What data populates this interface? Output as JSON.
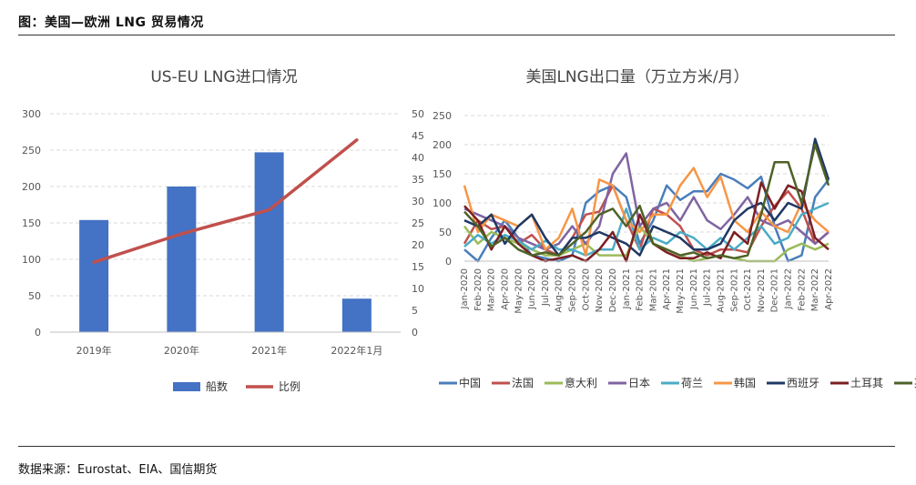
{
  "header": {
    "title": "图：美国—欧洲 LNG 贸易情况"
  },
  "footer": {
    "source": "数据来源：Eurostat、EIA、国信期货"
  },
  "chart_data": [
    {
      "type": "bar",
      "title": "US-EU LNG进口情况",
      "categories": [
        "2019年",
        "2020年",
        "2021年",
        "2022年1月"
      ],
      "ylim": [
        0,
        300
      ],
      "yticks": [
        0,
        50,
        100,
        150,
        200,
        250,
        300
      ],
      "y2lim": [
        0,
        50
      ],
      "y2ticks": [
        0,
        5,
        10,
        15,
        20,
        25,
        30,
        35,
        40,
        45,
        50
      ],
      "series": [
        {
          "name": "船数",
          "kind": "bar",
          "axis": "left",
          "color": "#4472C4",
          "values": [
            154,
            200,
            247,
            46
          ]
        },
        {
          "name": "比例",
          "kind": "line",
          "axis": "right",
          "color": "#C0504D",
          "values": [
            16,
            22.5,
            28,
            44
          ]
        }
      ]
    },
    {
      "type": "line",
      "title": "美国LNG出口量（万立方米/月）",
      "ylim": [
        0,
        250
      ],
      "yticks": [
        0,
        50,
        100,
        150,
        200,
        250
      ],
      "x": [
        "Jan-2020",
        "Feb-2020",
        "Mar-2020",
        "Apr-2020",
        "May-2020",
        "Jun-2020",
        "Jul-2020",
        "Aug-2020",
        "Sep-2020",
        "Oct-2020",
        "Nov-2020",
        "Dec-2020",
        "Jan-2021",
        "Feb-2021",
        "Mar-2021",
        "Apr-2021",
        "May-2021",
        "Jun-2021",
        "Jul-2021",
        "Aug-2021",
        "Sep-2021",
        "Oct-2021",
        "Nov-2021",
        "Dec-2021",
        "Jan-2022",
        "Feb-2022",
        "Mar-2022",
        "Apr-2022"
      ],
      "series": [
        {
          "name": "中国",
          "color": "#4A7EBB",
          "values": [
            20,
            0,
            40,
            70,
            40,
            10,
            5,
            0,
            10,
            100,
            120,
            130,
            110,
            30,
            70,
            130,
            105,
            120,
            120,
            150,
            140,
            125,
            145,
            60,
            0,
            10,
            110,
            140
          ]
        },
        {
          "name": "法国",
          "color": "#C0504D",
          "values": [
            30,
            70,
            55,
            60,
            30,
            45,
            20,
            10,
            40,
            80,
            85,
            130,
            70,
            20,
            90,
            80,
            60,
            20,
            10,
            20,
            20,
            15,
            60,
            95,
            120,
            90,
            30,
            50
          ]
        },
        {
          "name": "意大利",
          "color": "#9BBB59",
          "values": [
            60,
            30,
            50,
            40,
            30,
            20,
            10,
            10,
            20,
            30,
            10,
            10,
            10,
            60,
            30,
            20,
            10,
            0,
            5,
            10,
            5,
            0,
            0,
            0,
            20,
            30,
            20,
            30
          ]
        },
        {
          "name": "日本",
          "color": "#8064A2",
          "values": [
            90,
            80,
            70,
            60,
            40,
            30,
            20,
            30,
            60,
            30,
            60,
            150,
            185,
            60,
            90,
            100,
            70,
            110,
            70,
            55,
            80,
            110,
            70,
            60,
            70,
            50,
            30,
            50
          ]
        },
        {
          "name": "荷兰",
          "color": "#4BACC6",
          "values": [
            25,
            45,
            30,
            45,
            35,
            20,
            35,
            20,
            20,
            10,
            20,
            20,
            90,
            20,
            40,
            30,
            50,
            40,
            20,
            40,
            20,
            40,
            60,
            30,
            40,
            80,
            90,
            100
          ]
        },
        {
          "name": "韩国",
          "color": "#F79646",
          "values": [
            130,
            50,
            80,
            70,
            60,
            80,
            20,
            40,
            90,
            10,
            140,
            130,
            70,
            50,
            80,
            80,
            130,
            160,
            110,
            145,
            70,
            50,
            85,
            60,
            50,
            100,
            70,
            50
          ]
        },
        {
          "name": "西班牙",
          "color": "#1F3864",
          "values": [
            70,
            60,
            80,
            30,
            60,
            80,
            40,
            10,
            40,
            40,
            50,
            40,
            30,
            10,
            60,
            50,
            40,
            20,
            20,
            30,
            70,
            90,
            100,
            70,
            100,
            90,
            210,
            140
          ]
        },
        {
          "name": "土耳其",
          "color": "#7B1F22",
          "values": [
            95,
            70,
            20,
            60,
            30,
            10,
            0,
            5,
            10,
            0,
            20,
            50,
            0,
            80,
            30,
            15,
            5,
            5,
            15,
            5,
            50,
            30,
            135,
            90,
            130,
            120,
            40,
            20
          ]
        },
        {
          "name": "英国",
          "color": "#4F6228",
          "values": [
            85,
            60,
            25,
            40,
            20,
            10,
            15,
            10,
            30,
            50,
            80,
            90,
            60,
            95,
            30,
            20,
            10,
            15,
            5,
            10,
            5,
            10,
            80,
            170,
            170,
            100,
            200,
            130
          ]
        }
      ]
    }
  ]
}
